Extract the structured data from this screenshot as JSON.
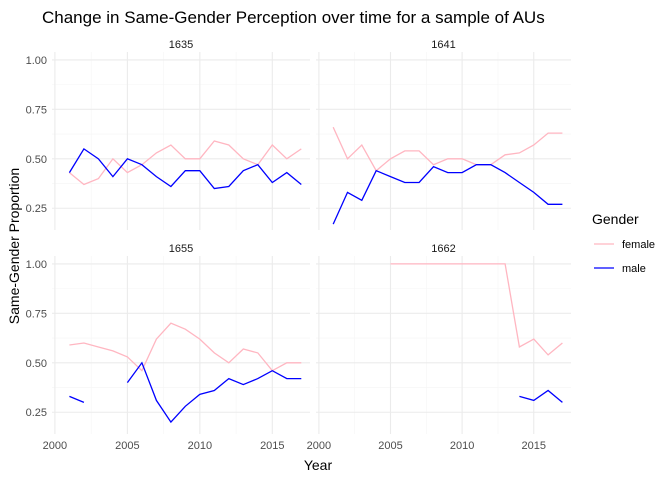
{
  "chart_data": {
    "type": "line",
    "title": "Change in Same-Gender Perception over time for a sample of AUs",
    "xlabel": "Year",
    "ylabel": "Same-Gender Proportion",
    "xlim": [
      1999.8,
      2017.6
    ],
    "ylim": [
      0.14,
      1.04
    ],
    "xticks": [
      2000,
      2005,
      2010,
      2015
    ],
    "xtick_labels": [
      "2000",
      "2005",
      "2010",
      "2015"
    ],
    "yticks": [
      0.25,
      0.5,
      0.75,
      1.0
    ],
    "ytick_labels": [
      "0.25",
      "0.50",
      "0.75",
      "1.00"
    ],
    "grid": true,
    "legend": {
      "title": "Gender",
      "position": "right",
      "entries": [
        {
          "label": "female",
          "color": "#FFB6C1"
        },
        {
          "label": "male",
          "color": "#0000FF"
        }
      ]
    },
    "panels": [
      {
        "label": "1635",
        "series": [
          {
            "name": "female",
            "color": "#FFB6C1",
            "points": [
              [
                2001,
                0.43
              ],
              [
                2002,
                0.37
              ],
              [
                2003,
                0.4
              ],
              [
                2004,
                0.5
              ],
              [
                2005,
                0.43
              ],
              [
                2006,
                0.47
              ],
              [
                2007,
                0.53
              ],
              [
                2008,
                0.57
              ],
              [
                2009,
                0.5
              ],
              [
                2010,
                0.5
              ],
              [
                2011,
                0.59
              ],
              [
                2012,
                0.57
              ],
              [
                2013,
                0.5
              ],
              [
                2014,
                0.47
              ],
              [
                2015,
                0.57
              ],
              [
                2016,
                0.5
              ],
              [
                2017,
                0.55
              ]
            ]
          },
          {
            "name": "male",
            "color": "#0000FF",
            "points": [
              [
                2001,
                0.43
              ],
              [
                2002,
                0.55
              ],
              [
                2003,
                0.5
              ],
              [
                2004,
                0.41
              ],
              [
                2005,
                0.5
              ],
              [
                2006,
                0.47
              ],
              [
                2007,
                0.41
              ],
              [
                2008,
                0.36
              ],
              [
                2009,
                0.44
              ],
              [
                2010,
                0.44
              ],
              [
                2011,
                0.35
              ],
              [
                2012,
                0.36
              ],
              [
                2013,
                0.44
              ],
              [
                2014,
                0.47
              ],
              [
                2015,
                0.38
              ],
              [
                2016,
                0.43
              ],
              [
                2017,
                0.37
              ]
            ]
          }
        ]
      },
      {
        "label": "1641",
        "series": [
          {
            "name": "female",
            "color": "#FFB6C1",
            "points": [
              [
                2001,
                0.66
              ],
              [
                2002,
                0.5
              ],
              [
                2003,
                0.57
              ],
              [
                2004,
                0.44
              ],
              [
                2005,
                0.5
              ],
              [
                2006,
                0.54
              ],
              [
                2007,
                0.54
              ],
              [
                2008,
                0.47
              ],
              [
                2009,
                0.5
              ],
              [
                2010,
                0.5
              ],
              [
                2011,
                0.47
              ],
              [
                2012,
                0.47
              ],
              [
                2013,
                0.52
              ],
              [
                2014,
                0.53
              ],
              [
                2015,
                0.57
              ],
              [
                2016,
                0.63
              ],
              [
                2017,
                0.63
              ]
            ]
          },
          {
            "name": "male",
            "color": "#0000FF",
            "points": [
              [
                2001,
                0.17
              ],
              [
                2002,
                0.33
              ],
              [
                2003,
                0.29
              ],
              [
                2004,
                0.44
              ],
              [
                2005,
                0.41
              ],
              [
                2006,
                0.38
              ],
              [
                2007,
                0.38
              ],
              [
                2008,
                0.46
              ],
              [
                2009,
                0.43
              ],
              [
                2010,
                0.43
              ],
              [
                2011,
                0.47
              ],
              [
                2012,
                0.47
              ],
              [
                2013,
                0.43
              ],
              [
                2014,
                0.38
              ],
              [
                2015,
                0.33
              ],
              [
                2016,
                0.27
              ],
              [
                2017,
                0.27
              ]
            ]
          }
        ]
      },
      {
        "label": "1655",
        "series": [
          {
            "name": "female",
            "color": "#FFB6C1",
            "points": [
              [
                2001,
                0.59
              ],
              [
                2002,
                0.6
              ],
              [
                2003,
                0.58
              ],
              [
                2004,
                0.56
              ],
              [
                2005,
                0.53
              ],
              [
                2006,
                0.46
              ],
              [
                2007,
                0.62
              ],
              [
                2008,
                0.7
              ],
              [
                2009,
                0.67
              ],
              [
                2010,
                0.62
              ],
              [
                2011,
                0.55
              ],
              [
                2012,
                0.5
              ],
              [
                2013,
                0.57
              ],
              [
                2014,
                0.55
              ],
              [
                2015,
                0.46
              ],
              [
                2016,
                0.5
              ],
              [
                2017,
                0.5
              ]
            ]
          },
          {
            "name": "male",
            "color": "#0000FF",
            "points": [
              [
                2001,
                0.33
              ],
              [
                2002,
                0.3
              ],
              [
                2003,
                null
              ],
              [
                2004,
                null
              ],
              [
                2005,
                0.4
              ],
              [
                2006,
                0.5
              ],
              [
                2007,
                0.31
              ],
              [
                2008,
                0.2
              ],
              [
                2009,
                0.28
              ],
              [
                2010,
                0.34
              ],
              [
                2011,
                0.36
              ],
              [
                2012,
                0.42
              ],
              [
                2013,
                0.39
              ],
              [
                2014,
                0.42
              ],
              [
                2015,
                0.46
              ],
              [
                2016,
                0.42
              ],
              [
                2017,
                0.42
              ]
            ]
          }
        ]
      },
      {
        "label": "1662",
        "series": [
          {
            "name": "female",
            "color": "#FFB6C1",
            "points": [
              [
                2005,
                1.0
              ],
              [
                2006,
                1.0
              ],
              [
                2007,
                1.0
              ],
              [
                2008,
                1.0
              ],
              [
                2009,
                1.0
              ],
              [
                2010,
                1.0
              ],
              [
                2011,
                1.0
              ],
              [
                2012,
                1.0
              ],
              [
                2013,
                1.0
              ],
              [
                2014,
                0.58
              ],
              [
                2015,
                0.62
              ],
              [
                2016,
                0.54
              ],
              [
                2017,
                0.6
              ]
            ]
          },
          {
            "name": "male",
            "color": "#0000FF",
            "points": [
              [
                2014,
                0.33
              ],
              [
                2015,
                0.31
              ],
              [
                2016,
                0.36
              ],
              [
                2017,
                0.3
              ]
            ]
          }
        ]
      }
    ]
  }
}
